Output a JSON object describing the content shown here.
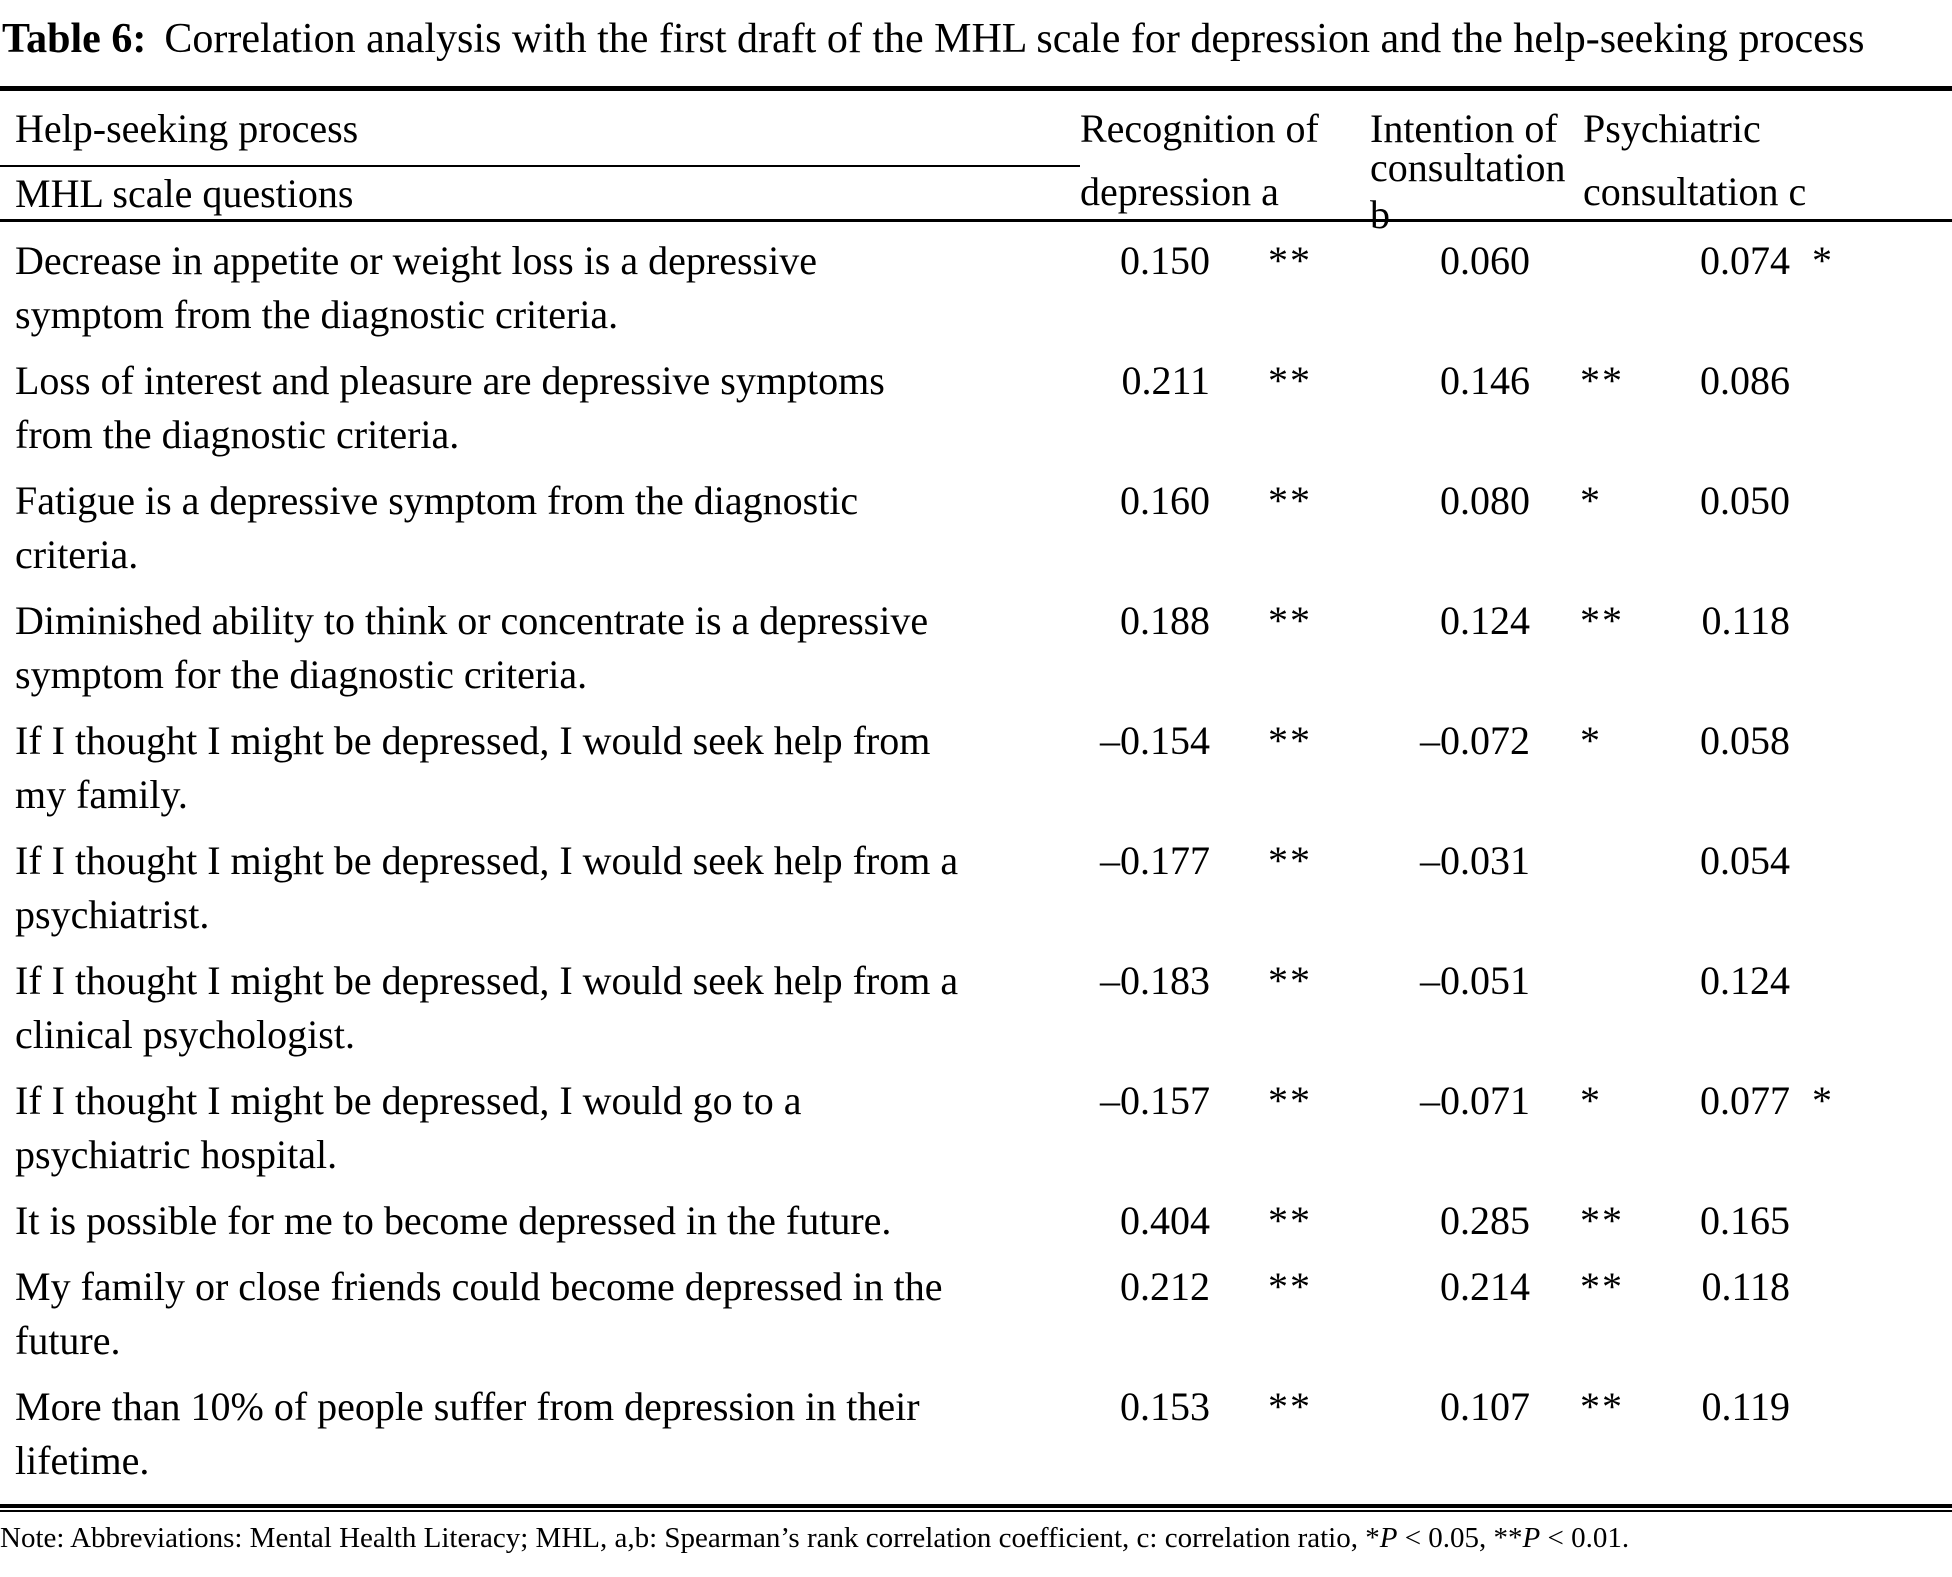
{
  "title": {
    "label": "Table 6:",
    "text": "Correlation analysis with the first draft of the MHL scale for depression and the help-seeking process"
  },
  "header": {
    "top_left": "Help-seeking process",
    "bottom_left": "MHL scale questions",
    "columns": [
      {
        "line1": "Recognition of",
        "line2": "depression a"
      },
      {
        "line1": "Intention of",
        "line2": "consultation b"
      },
      {
        "line1": "Psychiatric",
        "line2": "consultation c"
      }
    ]
  },
  "rows": [
    {
      "question": "Decrease in appetite or weight loss is a depressive\nsymptom from the diagnostic criteria.",
      "recognition": {
        "value": "0.150",
        "sig": "**"
      },
      "intention": {
        "value": "0.060",
        "sig": ""
      },
      "psychiatric": {
        "value": "0.074",
        "sig": "*"
      }
    },
    {
      "question": "Loss of interest and pleasure are depressive symptoms\nfrom the diagnostic criteria.",
      "recognition": {
        "value": "0.211",
        "sig": "**"
      },
      "intention": {
        "value": "0.146",
        "sig": "**"
      },
      "psychiatric": {
        "value": "0.086",
        "sig": ""
      }
    },
    {
      "question": "Fatigue is a depressive symptom from the diagnostic\ncriteria.",
      "recognition": {
        "value": "0.160",
        "sig": "**"
      },
      "intention": {
        "value": "0.080",
        "sig": "*"
      },
      "psychiatric": {
        "value": "0.050",
        "sig": ""
      }
    },
    {
      "question": "Diminished ability to think or concentrate is a depressive\nsymptom for the diagnostic criteria.",
      "recognition": {
        "value": "0.188",
        "sig": "**"
      },
      "intention": {
        "value": "0.124",
        "sig": "**"
      },
      "psychiatric": {
        "value": "0.118",
        "sig": ""
      }
    },
    {
      "question": "If I thought I might be depressed, I would seek help from\nmy family.",
      "recognition": {
        "value": "–0.154",
        "sig": "**"
      },
      "intention": {
        "value": "–0.072",
        "sig": "*"
      },
      "psychiatric": {
        "value": "0.058",
        "sig": ""
      }
    },
    {
      "question": "If I thought I might be depressed, I would seek help from a\npsychiatrist.",
      "recognition": {
        "value": "–0.177",
        "sig": "**"
      },
      "intention": {
        "value": "–0.031",
        "sig": ""
      },
      "psychiatric": {
        "value": "0.054",
        "sig": ""
      }
    },
    {
      "question": "If I thought I might be depressed, I would seek help from a\nclinical psychologist.",
      "recognition": {
        "value": "–0.183",
        "sig": "**"
      },
      "intention": {
        "value": "–0.051",
        "sig": ""
      },
      "psychiatric": {
        "value": "0.124",
        "sig": ""
      }
    },
    {
      "question": "If I thought I might be depressed, I would go to a\npsychiatric hospital.",
      "recognition": {
        "value": "–0.157",
        "sig": "**"
      },
      "intention": {
        "value": "–0.071",
        "sig": "*"
      },
      "psychiatric": {
        "value": "0.077",
        "sig": "*"
      }
    },
    {
      "question": "It is possible for me to become depressed in the future.",
      "recognition": {
        "value": "0.404",
        "sig": "**"
      },
      "intention": {
        "value": "0.285",
        "sig": "**"
      },
      "psychiatric": {
        "value": "0.165",
        "sig": ""
      }
    },
    {
      "question": "My family or close friends could become depressed in the\nfuture.",
      "recognition": {
        "value": "0.212",
        "sig": "**"
      },
      "intention": {
        "value": "0.214",
        "sig": "**"
      },
      "psychiatric": {
        "value": "0.118",
        "sig": ""
      }
    },
    {
      "question": "More than 10% of people suffer from depression in their\nlifetime.",
      "recognition": {
        "value": "0.153",
        "sig": "**"
      },
      "intention": {
        "value": "0.107",
        "sig": "**"
      },
      "psychiatric": {
        "value": "0.119",
        "sig": ""
      }
    }
  ],
  "note": {
    "prefix": "Note: Abbreviations: Mental Health Literacy; MHL, a,b: Spearman’s rank correlation coefficient, c: correlation ratio, *",
    "p1": "P",
    "mid": " < 0.05, **",
    "p2": "P",
    "end": " < 0.01."
  }
}
